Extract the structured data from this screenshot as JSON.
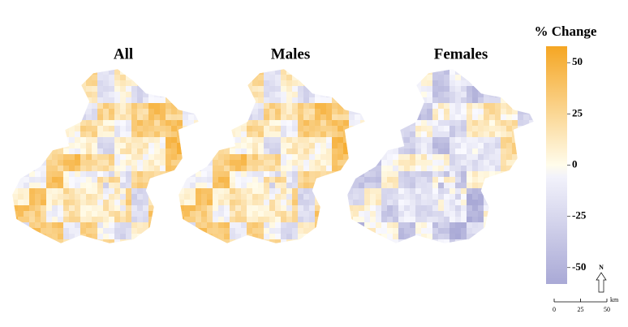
{
  "panels": [
    {
      "title": "All"
    },
    {
      "title": "Males"
    },
    {
      "title": "Females"
    }
  ],
  "legend": {
    "title": "% Change",
    "range": [
      -58,
      58
    ],
    "ticks": [
      50,
      25,
      0,
      -25,
      -50
    ],
    "low_color": "#a9a9d6",
    "high_color": "#f5a623"
  },
  "scale_bar": {
    "ticks": [
      0,
      25,
      50
    ],
    "unit": "km"
  },
  "north": "N"
}
